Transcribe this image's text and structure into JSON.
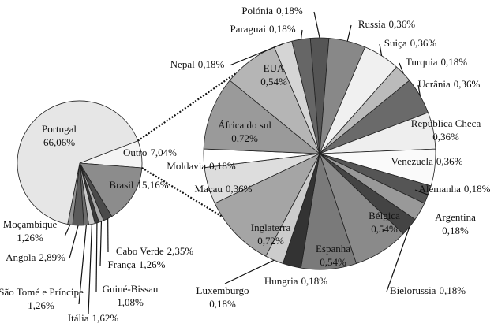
{
  "chart_data": {
    "type": "pie-of-pie",
    "pies": [
      {
        "categories": [
          "Outro",
          "Brasil",
          "Cabo Verde",
          "França",
          "Guiné-Bissau",
          "Itália",
          "São Tomé e Príncipe",
          "Angola",
          "Moçambique",
          "Portugal"
        ],
        "values": [
          7.04,
          15.16,
          2.35,
          1.26,
          1.08,
          1.62,
          1.26,
          2.89,
          1.26,
          66.06
        ],
        "value_labels": [
          "7,04%",
          "15,16%",
          "2,35%",
          "1,26%",
          "1,08%",
          "1,62%",
          "1,26%",
          "2,89%",
          "1,26%",
          "66,06%"
        ],
        "colors": [
          "#f4f4f4",
          "#8c8c8c",
          "#4a4a4a",
          "#a8a8a8",
          "#3a3a3a",
          "#c8c8c8",
          "#6e6e6e",
          "#5a5a5a",
          "#929292",
          "#e6e6e6"
        ]
      },
      {
        "categories": [
          "Polónia",
          "Russia",
          "Suiça",
          "Turquia",
          "Ucrânia",
          "República Checa",
          "Venezuela",
          "Alemanha",
          "Argentina",
          "Bielorussia",
          "Bélgica",
          "Espanha",
          "Hungria",
          "Luxemburgo",
          "Inglaterra",
          "Macau",
          "Moldavia",
          "África do sul",
          "EUA",
          "Nepal",
          "Paraguai"
        ],
        "values": [
          0.18,
          0.36,
          0.36,
          0.18,
          0.36,
          0.36,
          0.36,
          0.18,
          0.18,
          0.18,
          0.54,
          0.54,
          0.18,
          0.18,
          0.72,
          0.36,
          0.18,
          0.72,
          0.54,
          0.18,
          0.18
        ],
        "value_labels": [
          "0,18%",
          "0,36%",
          "0,36%",
          "0,18%",
          "0,36%",
          "0,36%",
          "0,36%",
          "0,18%",
          "0,18%",
          "0,18%",
          "0,54%",
          "0,54%",
          "0,18%",
          "0,18%",
          "0,72%",
          "0,36%",
          "0,18%",
          "0,72%",
          "0,54%",
          "0,18%",
          "0,18%"
        ],
        "colors": [
          "#555555",
          "#888888",
          "#f0f0f0",
          "#bbbbbb",
          "#6a6a6a",
          "#eeeeee",
          "#fafafa",
          "#555555",
          "#999999",
          "#444444",
          "#8a8a8a",
          "#7a7a7a",
          "#333333",
          "#cccccc",
          "#a5a5a5",
          "#dddddd",
          "#ffffff",
          "#9a9a9a",
          "#b5b5b5",
          "#d5d5d5",
          "#666666"
        ]
      }
    ]
  }
}
